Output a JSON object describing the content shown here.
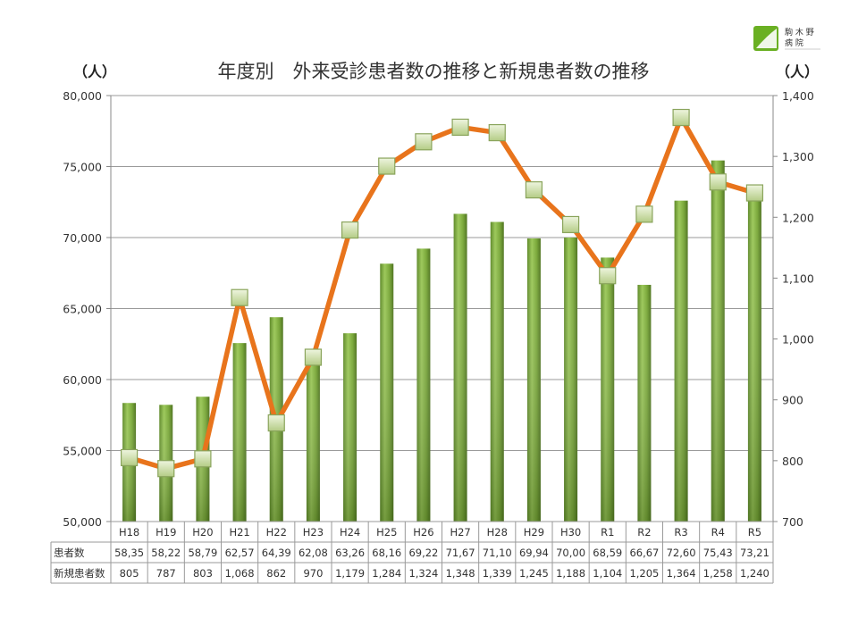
{
  "logo": {
    "line1": "駒 木 野",
    "line2": "病 院"
  },
  "chart_data": {
    "type": "bar+line",
    "title": "年度別　外来受診患者数の推移と新規患者数の推移",
    "left_unit": "（人）",
    "right_unit": "（人）",
    "categories": [
      "H18",
      "H19",
      "H20",
      "H21",
      "H22",
      "H23",
      "H24",
      "H25",
      "H26",
      "H27",
      "H28",
      "H29",
      "H30",
      "R1",
      "R2",
      "R3",
      "R4",
      "R5"
    ],
    "series": [
      {
        "name": "患者数",
        "type": "bar",
        "axis": "left",
        "color": "#7aa83a",
        "values": [
          58350,
          58220,
          58790,
          62570,
          64390,
          62080,
          63260,
          68160,
          69220,
          71670,
          71100,
          69940,
          70000,
          68590,
          66670,
          72600,
          75430,
          73210
        ],
        "table_labels": [
          "58,35",
          "58,22",
          "58,79",
          "62,57",
          "64,39",
          "62,08",
          "63,26",
          "68,16",
          "69,22",
          "71,67",
          "71,10",
          "69,94",
          "70,00",
          "68,59",
          "66,67",
          "72,60",
          "75,43",
          "73,21"
        ]
      },
      {
        "name": "新規患者数",
        "type": "line",
        "axis": "right",
        "color": "#e8741c",
        "marker_color": "#c9dca6",
        "values": [
          805,
          787,
          803,
          1068,
          862,
          970,
          1179,
          1284,
          1324,
          1348,
          1339,
          1245,
          1188,
          1104,
          1205,
          1364,
          1258,
          1240
        ],
        "table_labels": [
          "805",
          "787",
          "803",
          "1,068",
          "862",
          "970",
          "1,179",
          "1,284",
          "1,324",
          "1,348",
          "1,339",
          "1,245",
          "1,188",
          "1,104",
          "1,205",
          "1,364",
          "1,258",
          "1,240"
        ]
      }
    ],
    "left_axis": {
      "min": 50000,
      "max": 80000,
      "step": 5000,
      "tick_labels": [
        "50,000",
        "55,000",
        "60,000",
        "65,000",
        "70,000",
        "75,000",
        "80,000"
      ]
    },
    "right_axis": {
      "min": 700,
      "max": 1400,
      "step": 100,
      "tick_labels": [
        "700",
        "800",
        "900",
        "1,000",
        "1,100",
        "1,200",
        "1,300",
        "1,400"
      ]
    },
    "grid": true,
    "legend": "data-table-below"
  }
}
